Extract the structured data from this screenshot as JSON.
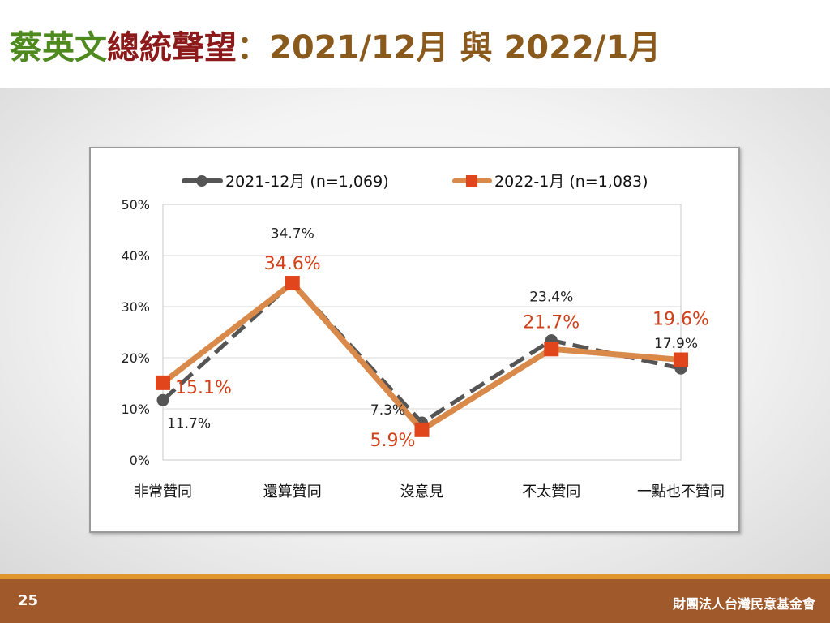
{
  "title": {
    "name": "蔡英文",
    "topic": "總統聲望",
    "rest": "：2021/12月 與 2022/1月"
  },
  "footer": {
    "page_number": "25",
    "organization": "財團法人台灣民意基金會"
  },
  "colors": {
    "series_dec": "#555555",
    "series_jan": "#d98a4a",
    "marker_jan": "#e0451b",
    "label_jan": "#d2401a",
    "label_dec": "#222222",
    "footer": "#a0592a",
    "accent": "#e0962c"
  },
  "chart_data": {
    "type": "line",
    "categories": [
      "非常贊同",
      "還算贊同",
      "沒意見",
      "不太贊同",
      "一點也不贊同"
    ],
    "ylim": [
      0,
      50
    ],
    "yticks": [
      "0%",
      "10%",
      "20%",
      "30%",
      "40%",
      "50%"
    ],
    "grid": true,
    "legend": "top",
    "series": [
      {
        "name": "2021-12月  (n=1,069)",
        "values": [
          11.7,
          34.7,
          7.3,
          23.4,
          17.9
        ],
        "labels": [
          "11.7%",
          "34.7%",
          "7.3%",
          "23.4%",
          "17.9%"
        ],
        "line_style": "dashed",
        "marker": "circle"
      },
      {
        "name": "2022-1月  (n=1,083)",
        "values": [
          15.1,
          34.6,
          5.9,
          21.7,
          19.6
        ],
        "labels": [
          "15.1%",
          "34.6%",
          "5.9%",
          "21.7%",
          "19.6%"
        ],
        "line_style": "solid",
        "marker": "square"
      }
    ]
  }
}
